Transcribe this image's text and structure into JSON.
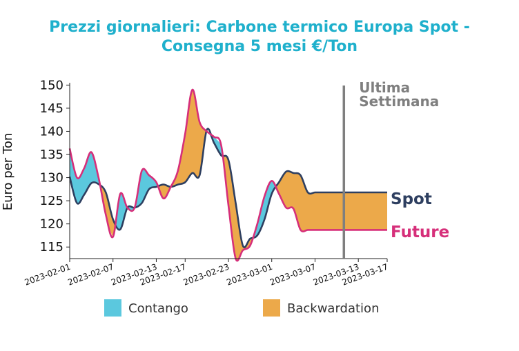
{
  "chart_data": {
    "type": "line",
    "title_lines": [
      "Prezzi giornalieri: Carbone termico Europa Spot -",
      "Consegna 5 mesi €/Ton"
    ],
    "xlabel": "",
    "ylabel": "Euro per Ton",
    "ylim": [
      112.5,
      150.5
    ],
    "yticks": [
      115,
      120,
      125,
      130,
      135,
      140,
      145,
      150
    ],
    "xlim": [
      "2023-02-01",
      "2023-03-17"
    ],
    "xticks": [
      "2023-02-01",
      "2023-02-07",
      "2023-02-13",
      "2023-02-17",
      "2023-02-23",
      "2023-03-01",
      "2023-03-07",
      "2023-03-13",
      "2023-03-17"
    ],
    "grid": false,
    "x": [
      "2023-02-01",
      "2023-02-02",
      "2023-02-03",
      "2023-02-04",
      "2023-02-05",
      "2023-02-06",
      "2023-02-07",
      "2023-02-08",
      "2023-02-09",
      "2023-02-10",
      "2023-02-11",
      "2023-02-12",
      "2023-02-13",
      "2023-02-14",
      "2023-02-15",
      "2023-02-16",
      "2023-02-17",
      "2023-02-18",
      "2023-02-19",
      "2023-02-20",
      "2023-02-21",
      "2023-02-22",
      "2023-02-23",
      "2023-02-24",
      "2023-02-25",
      "2023-02-26",
      "2023-02-27",
      "2023-02-28",
      "2023-03-01",
      "2023-03-02",
      "2023-03-03",
      "2023-03-04",
      "2023-03-05",
      "2023-03-06",
      "2023-03-07",
      "2023-03-08",
      "2023-03-09",
      "2023-03-10",
      "2023-03-11",
      "2023-03-12",
      "2023-03-13",
      "2023-03-14",
      "2023-03-15",
      "2023-03-16",
      "2023-03-17"
    ],
    "series": [
      {
        "name": "Spot",
        "color": "#2e3f60",
        "values": [
          130.2,
          124.5,
          126.3,
          128.8,
          128.6,
          126.8,
          121.0,
          118.8,
          123.5,
          123.5,
          124.5,
          127.5,
          128.0,
          128.5,
          128.0,
          128.5,
          129.0,
          131.0,
          130.5,
          140.3,
          137.5,
          134.8,
          133.8,
          124.5,
          115.3,
          116.8,
          117.5,
          121.0,
          126.5,
          129.0,
          131.3,
          131.0,
          130.5,
          126.8,
          126.8,
          126.8,
          126.8,
          126.8,
          126.8,
          126.8,
          126.8,
          126.8,
          126.8,
          126.8,
          126.8
        ]
      },
      {
        "name": "Future",
        "color": "#d62f7a",
        "values": [
          136.3,
          130.0,
          132.0,
          135.5,
          130.0,
          122.0,
          117.2,
          126.5,
          123.5,
          123.5,
          131.5,
          130.5,
          129.0,
          125.5,
          128.0,
          131.5,
          139.5,
          149.0,
          142.0,
          140.0,
          138.8,
          137.0,
          124.0,
          112.5,
          114.3,
          115.3,
          120.0,
          126.0,
          129.3,
          126.5,
          123.5,
          123.3,
          118.7,
          118.7,
          118.7,
          118.7,
          118.7,
          118.7,
          118.7,
          118.7,
          118.7,
          118.7,
          118.7,
          118.7,
          118.7
        ]
      }
    ],
    "fill_between": {
      "contango_label": "Contango",
      "contango_color": "#5bc8de",
      "backwardation_label": "Backwardation",
      "backwardation_color": "#eca94a"
    },
    "annotation": {
      "lines": [
        "Ultima",
        "Settimana"
      ],
      "x": "2023-03-11",
      "color": "#7f7f7f"
    },
    "legend_position": "bottom"
  }
}
